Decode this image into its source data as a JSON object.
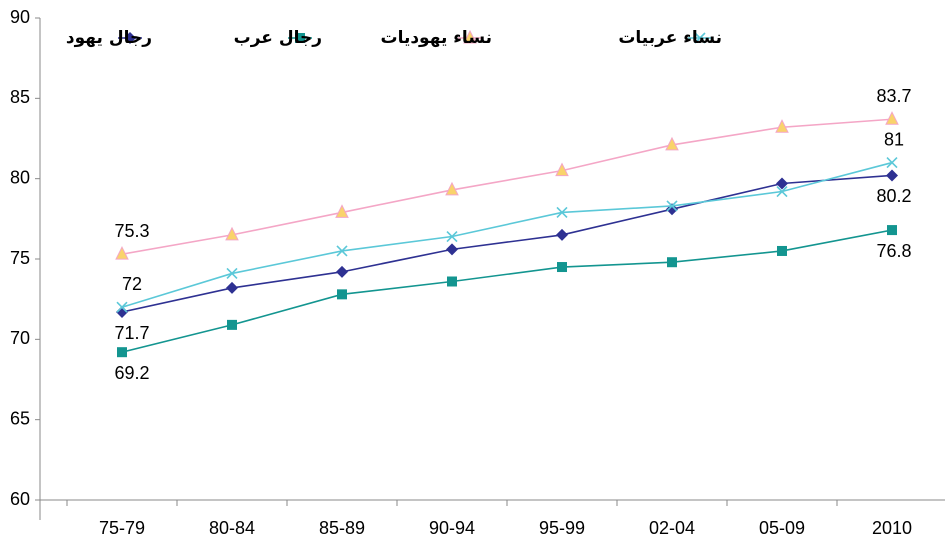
{
  "chart_data": {
    "type": "line",
    "categories": [
      "75-79",
      "80-84",
      "85-89",
      "90-94",
      "95-99",
      "02-04",
      "05-09",
      "2010"
    ],
    "series": [
      {
        "name": "رجال يهود",
        "color": "#2e3192",
        "marker": "diamond",
        "values": [
          71.7,
          73.2,
          74.2,
          75.6,
          76.5,
          78.1,
          79.7,
          80.2
        ]
      },
      {
        "name": "رجال عرب",
        "color": "#139590",
        "marker": "square",
        "values": [
          69.2,
          70.9,
          72.8,
          73.6,
          74.5,
          74.8,
          75.5,
          76.8
        ]
      },
      {
        "name": "نساء يهوديات",
        "color": "#f4a6c6",
        "marker": "triangle",
        "marker_color": "#f9d36b",
        "values": [
          75.3,
          76.5,
          77.9,
          79.3,
          80.5,
          82.1,
          83.2,
          83.7
        ]
      },
      {
        "name": "نساء عربيات",
        "color": "#5bc8d8",
        "marker": "x",
        "values": [
          72,
          74.1,
          75.5,
          76.4,
          77.9,
          78.3,
          79.2,
          81
        ]
      }
    ],
    "label_points": [
      0,
      7
    ],
    "ylim": [
      60,
      90
    ],
    "yticks": [
      60,
      65,
      70,
      75,
      80,
      85,
      90
    ],
    "legend": "top"
  }
}
